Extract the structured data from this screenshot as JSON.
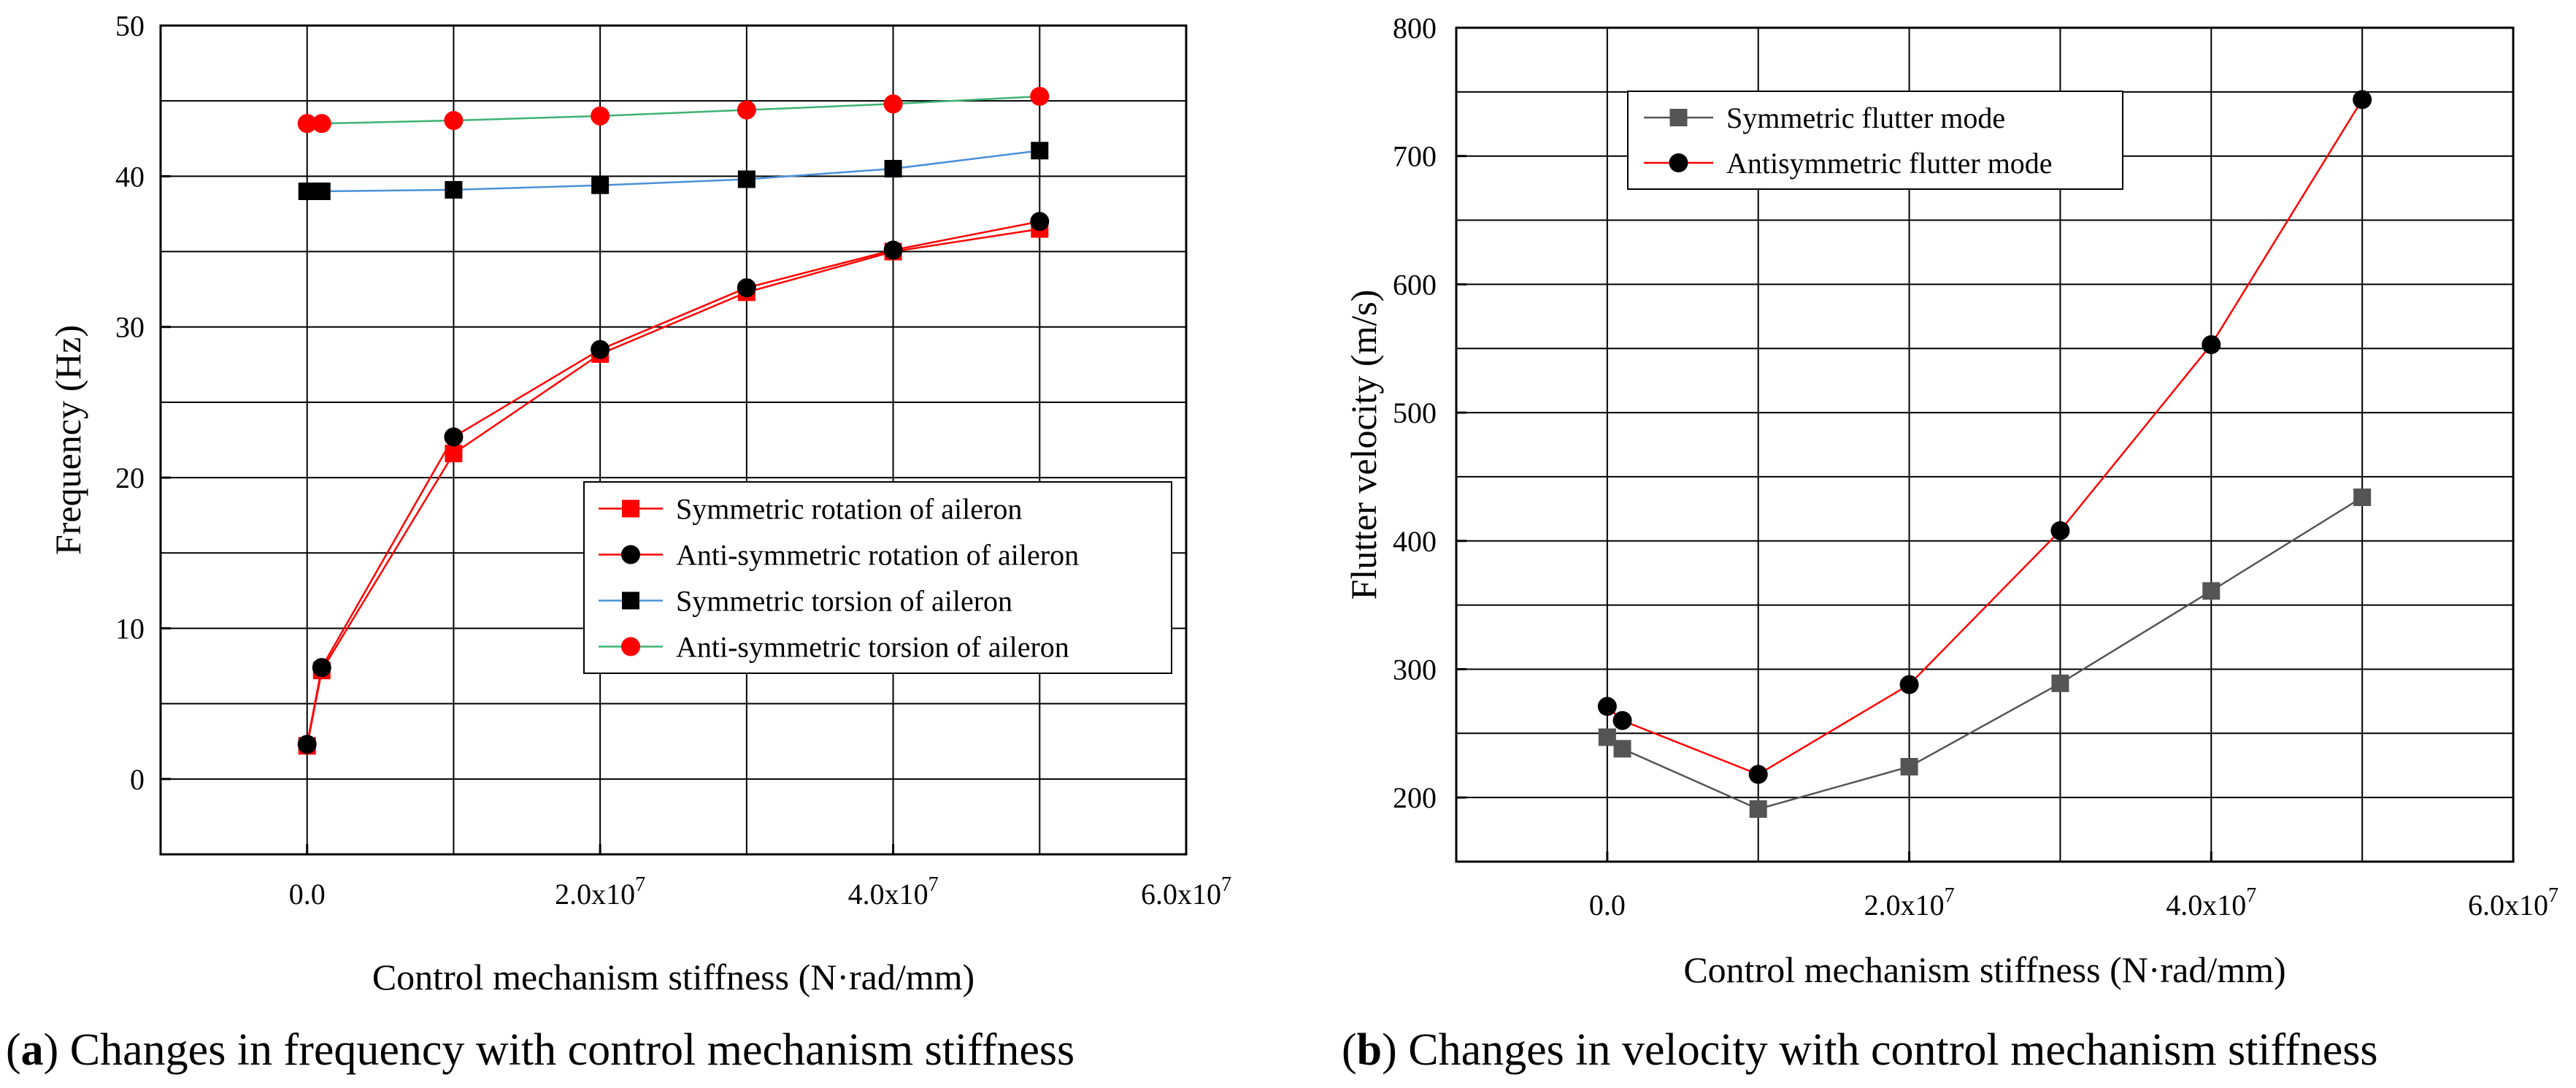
{
  "chart_data": [
    {
      "type": "line",
      "panel_id": "a",
      "xlabel": "Control mechanism stiffness (N·rad/mm)",
      "ylabel": "Frequency (Hz)",
      "xlim": [
        -10000000,
        60000000
      ],
      "ylim": [
        -5,
        50
      ],
      "grid": true,
      "legend_position": "center-right",
      "x_ticks": [
        0,
        20000000,
        40000000,
        60000000
      ],
      "x_tick_labels": [
        {
          "base": "0.0",
          "exp": ""
        },
        {
          "base": "2.0x10",
          "exp": "7"
        },
        {
          "base": "4.0x10",
          "exp": "7"
        },
        {
          "base": "6.0x10",
          "exp": "7"
        }
      ],
      "y_ticks": [
        0,
        10,
        20,
        30,
        40,
        50
      ],
      "y_tick_labels": [
        "0",
        "10",
        "20",
        "30",
        "40",
        "50"
      ],
      "x_grid": [
        0,
        10000000,
        20000000,
        30000000,
        40000000,
        50000000
      ],
      "y_grid": [
        0,
        5,
        10,
        15,
        20,
        25,
        30,
        35,
        40,
        45
      ],
      "series": [
        {
          "name": "Symmetric rotation of aileron",
          "marker": "square",
          "marker_color": "#ff0000",
          "line_color": "#ff0000",
          "x": [
            0,
            1000000,
            10000000,
            20000000,
            30000000,
            40000000,
            50000000
          ],
          "y": [
            2.2,
            7.2,
            21.6,
            28.2,
            32.3,
            35.0,
            36.5
          ]
        },
        {
          "name": "Anti-symmetric rotation of aileron",
          "marker": "circle",
          "marker_color": "#000000",
          "line_color": "#ff0000",
          "x": [
            0,
            1000000,
            10000000,
            20000000,
            30000000,
            40000000,
            50000000
          ],
          "y": [
            2.3,
            7.4,
            22.7,
            28.5,
            32.6,
            35.1,
            37.0
          ]
        },
        {
          "name": "Symmetric torsion of aileron",
          "marker": "square",
          "marker_color": "#000000",
          "line_color": "#4a90d9",
          "x": [
            0,
            1000000,
            10000000,
            20000000,
            30000000,
            40000000,
            50000000
          ],
          "y": [
            39.0,
            39.0,
            39.1,
            39.4,
            39.8,
            40.5,
            41.7
          ]
        },
        {
          "name": "Anti-symmetric torsion of aileron",
          "marker": "circle",
          "marker_color": "#ff0000",
          "line_color": "#3cb371",
          "x": [
            0,
            1000000,
            10000000,
            20000000,
            30000000,
            40000000,
            50000000
          ],
          "y": [
            43.5,
            43.5,
            43.7,
            44.0,
            44.4,
            44.8,
            45.3
          ]
        }
      ],
      "caption": {
        "prefix": "(",
        "letter": "a",
        "suffix": ") Changes in frequency with control mechanism stiffness"
      }
    },
    {
      "type": "line",
      "panel_id": "b",
      "xlabel": "Control mechanism stiffness (N·rad/mm)",
      "ylabel": "Flutter velocity (m/s)",
      "xlim": [
        -10000000,
        60000000
      ],
      "ylim": [
        150,
        800
      ],
      "grid": true,
      "legend_position": "top-left",
      "x_ticks": [
        0,
        20000000,
        40000000,
        60000000
      ],
      "x_tick_labels": [
        {
          "base": "0.0",
          "exp": ""
        },
        {
          "base": "2.0x10",
          "exp": "7"
        },
        {
          "base": "4.0x10",
          "exp": "7"
        },
        {
          "base": "6.0x10",
          "exp": "7"
        }
      ],
      "y_ticks": [
        200,
        300,
        400,
        500,
        600,
        700,
        800
      ],
      "y_tick_labels": [
        "200",
        "300",
        "400",
        "500",
        "600",
        "700",
        "800"
      ],
      "x_grid": [
        0,
        10000000,
        20000000,
        30000000,
        40000000,
        50000000
      ],
      "y_grid": [
        200,
        250,
        300,
        350,
        400,
        450,
        500,
        550,
        600,
        650,
        700,
        750
      ],
      "series": [
        {
          "name": "Symmetric flutter mode",
          "marker": "square",
          "marker_color": "#555555",
          "line_color": "#555555",
          "x": [
            0,
            1000000,
            10000000,
            20000000,
            30000000,
            40000000,
            50000000
          ],
          "y": [
            247,
            238,
            191,
            224,
            289,
            361,
            434
          ]
        },
        {
          "name": "Antisymmetric flutter mode",
          "marker": "circle",
          "marker_color": "#000000",
          "line_color": "#ff0000",
          "x": [
            0,
            1000000,
            10000000,
            20000000,
            30000000,
            40000000,
            50000000
          ],
          "y": [
            271,
            260,
            218,
            288,
            408,
            553,
            744
          ]
        }
      ],
      "caption": {
        "prefix": "(",
        "letter": "b",
        "suffix": ") Changes in velocity with control mechanism stiffness"
      }
    }
  ]
}
